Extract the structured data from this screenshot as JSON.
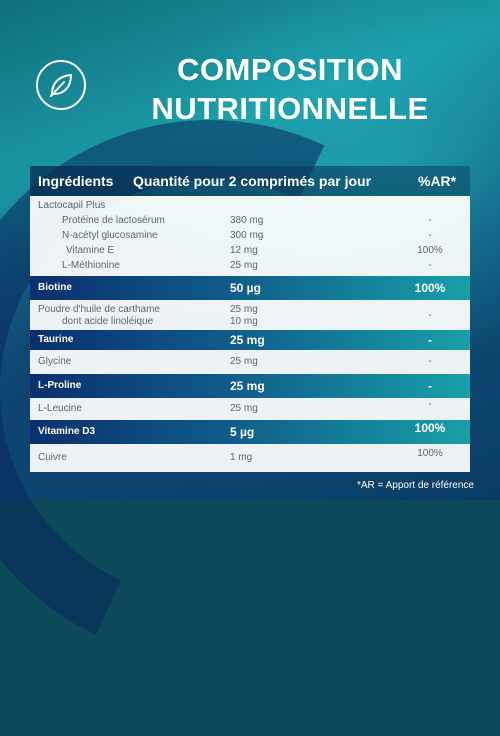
{
  "title": {
    "line1": "COMPOSITION",
    "line2": "NUTRITIONNELLE"
  },
  "table": {
    "headers": {
      "ingredients": "Ingrédients",
      "quantity": "Quantité pour 2 comprimés par jour",
      "ar": "%AR*"
    },
    "group": {
      "name": "Lactocapil Plus",
      "items": [
        {
          "name": "Protéine de lactosérum",
          "qty": "380 mg",
          "ar": "-"
        },
        {
          "name": "N-acétyl glucosamine",
          "qty": "300 mg",
          "ar": "-"
        },
        {
          "name": "Vitamine E",
          "qty": "12 mg",
          "ar": "100%"
        },
        {
          "name": "L-Méthionine",
          "qty": "25 mg",
          "ar": "-"
        }
      ]
    },
    "biotine": {
      "name": "Biotine",
      "qty": "50 µg",
      "ar": "100%"
    },
    "carthame": {
      "name": "Poudre d'huile de carthame",
      "qty": "25 mg",
      "sub_name": "dont acide linoléique",
      "sub_qty": "10 mg",
      "ar": "-"
    },
    "taurine": {
      "name": "Taurine",
      "qty": "25 mg",
      "ar": "-"
    },
    "glycine": {
      "name": "Glycine",
      "qty": "25 mg",
      "ar": "-"
    },
    "proline": {
      "name": "L-Proline",
      "qty": "25 mg",
      "ar": "-"
    },
    "leucine": {
      "name": "L-Leucine",
      "qty": "25 mg",
      "ar": "-"
    },
    "vitd3": {
      "name": "Vitamine D3",
      "qty": "5 µg",
      "ar": "100%"
    },
    "cuivre": {
      "name": "Cuivre",
      "qty": "1 mg",
      "ar": "100%"
    }
  },
  "footnote": "*AR = Apport de référence",
  "icons": {
    "logo": "leaf-icon"
  }
}
